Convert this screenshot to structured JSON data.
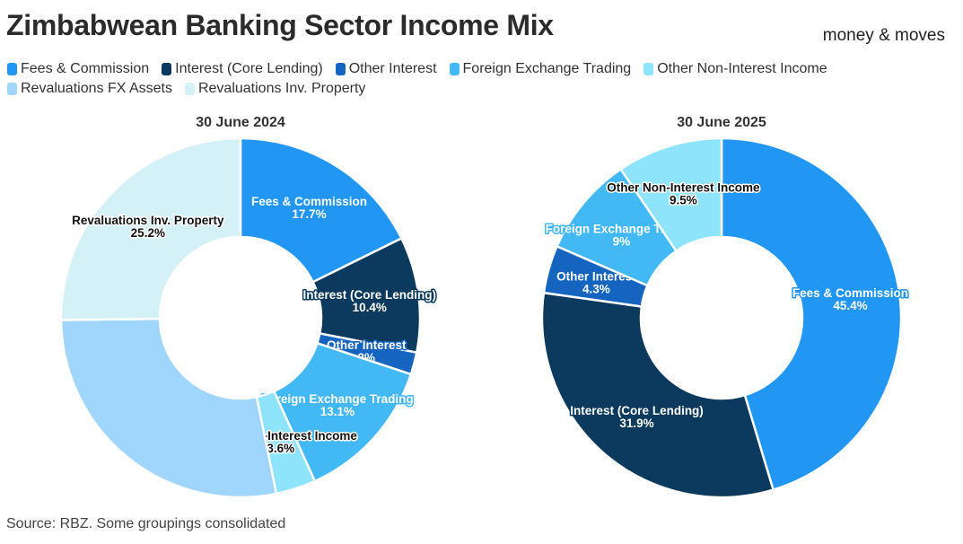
{
  "header": {
    "title": "Zimbabwean Banking Sector Income Mix",
    "brand": "money & moves"
  },
  "footer": {
    "source": "Source: RBZ. Some groupings consolidated"
  },
  "legend": [
    {
      "label": "Fees & Commission",
      "color": "#2196f3"
    },
    {
      "label": "Interest (Core Lending)",
      "color": "#0b3a5e"
    },
    {
      "label": "Other Interest",
      "color": "#1565c0"
    },
    {
      "label": "Foreign Exchange Trading",
      "color": "#42b8f5"
    },
    {
      "label": "Other Non-Interest Income",
      "color": "#8ee4fb"
    },
    {
      "label": "Revaluations FX Assets",
      "color": "#a0d6fb"
    },
    {
      "label": "Revaluations Inv. Property",
      "color": "#d5f1f8"
    }
  ],
  "chart_data": [
    {
      "type": "pie",
      "title": "30 June 2024",
      "hole": 0.45,
      "slices": [
        {
          "label": "Fees & Commission",
          "value": 17.7,
          "color": "#2196f3",
          "show_label": true
        },
        {
          "label": "Interest (Core Lending)",
          "value": 10.4,
          "color": "#0b3a5e",
          "show_label": true
        },
        {
          "label": "Other Interest",
          "value": 2,
          "color": "#1565c0",
          "show_label": true
        },
        {
          "label": "Foreign Exchange Trading",
          "value": 13.1,
          "color": "#42b8f5",
          "show_label": true
        },
        {
          "label": "Other Non-Interest Income",
          "value": 3.6,
          "color": "#8ee4fb",
          "show_label": true
        },
        {
          "label": "Revaluations FX Assets",
          "value": 28.0,
          "color": "#a0d6fb",
          "show_label": false
        },
        {
          "label": "Revaluations Inv. Property",
          "value": 25.2,
          "color": "#d5f1f8",
          "show_label": true
        }
      ]
    },
    {
      "type": "pie",
      "title": "30 June 2025",
      "hole": 0.45,
      "slices": [
        {
          "label": "Fees & Commission",
          "value": 45.4,
          "color": "#2196f3",
          "show_label": true
        },
        {
          "label": "Interest (Core Lending)",
          "value": 31.9,
          "color": "#0b3a5e",
          "show_label": true
        },
        {
          "label": "Other Interest",
          "value": 4.3,
          "color": "#1565c0",
          "show_label": true
        },
        {
          "label": "Foreign Exchange Trading",
          "value": 9,
          "color": "#42b8f5",
          "show_label": true
        },
        {
          "label": "Other Non-Interest Income",
          "value": 9.5,
          "color": "#8ee4fb",
          "show_label": true
        }
      ]
    }
  ]
}
